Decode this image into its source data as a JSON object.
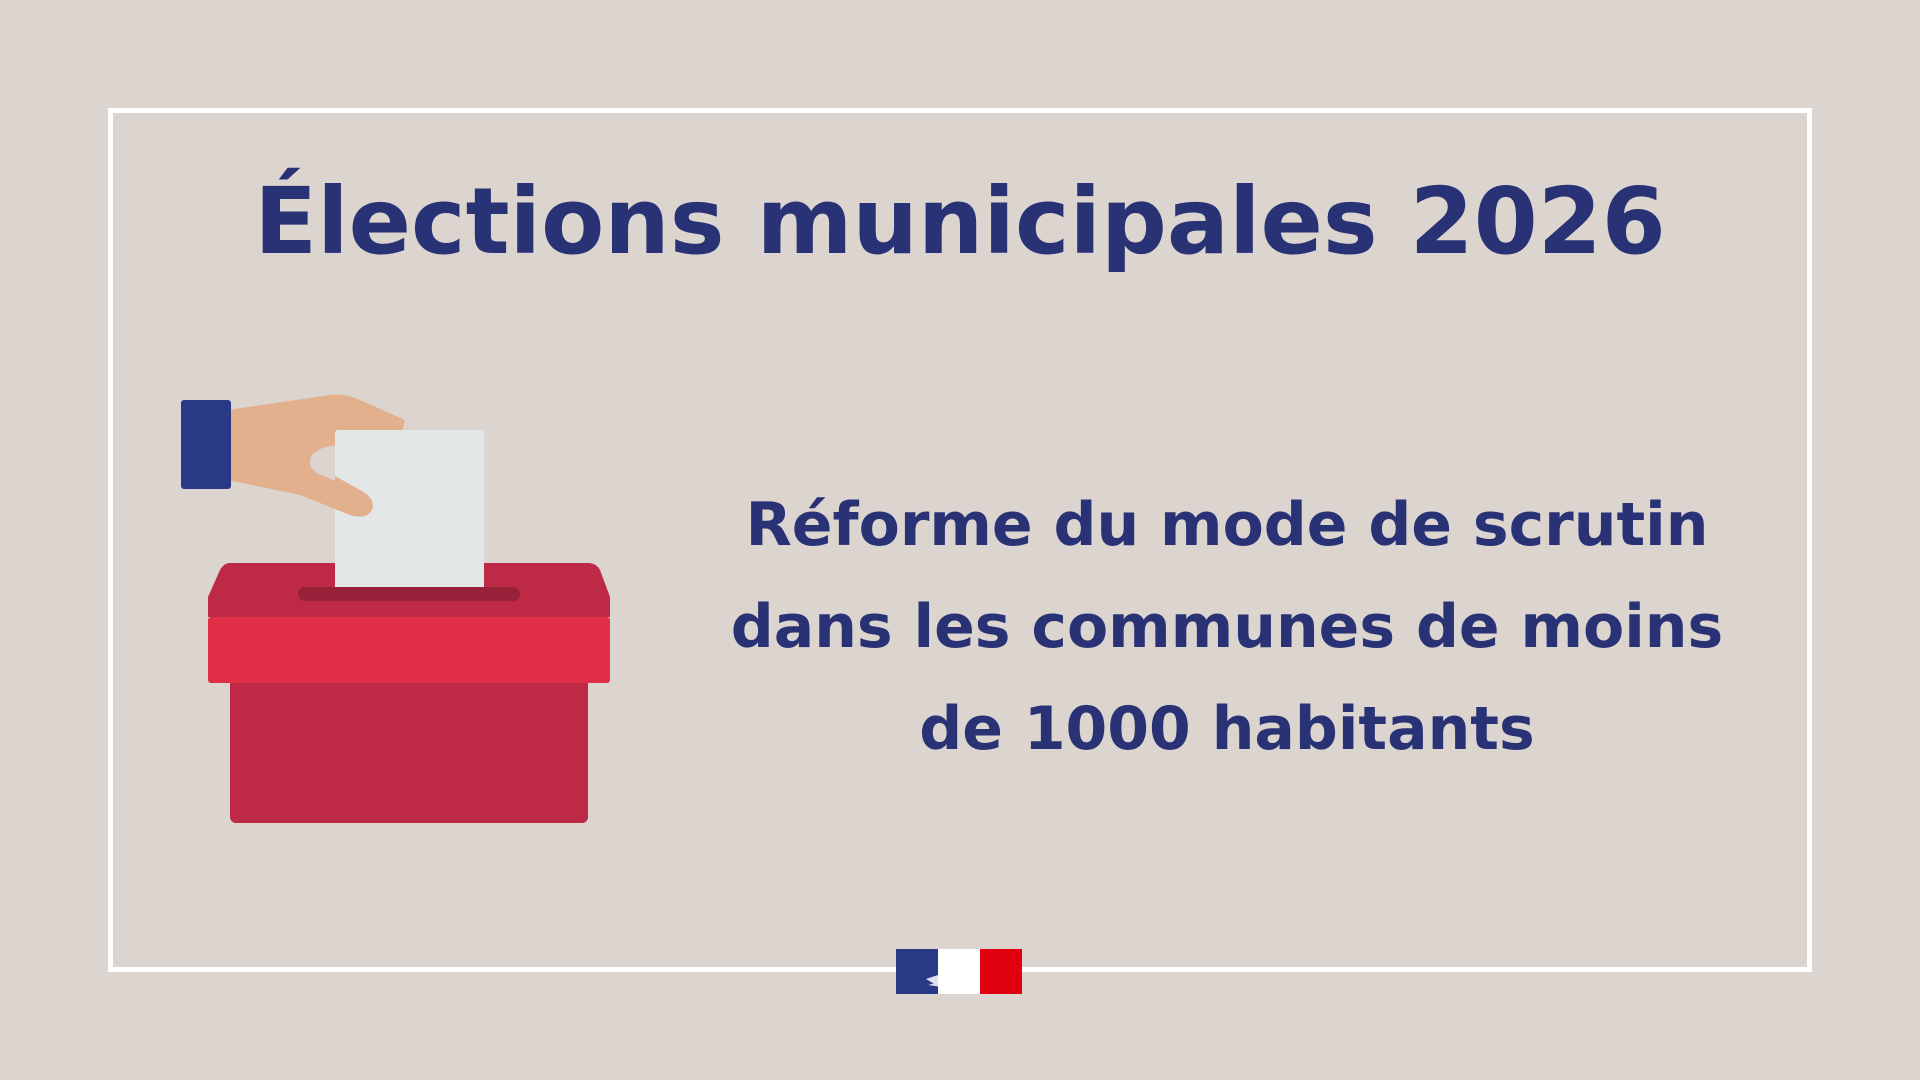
{
  "title": "Élections municipales 2026",
  "subtitle_lines": [
    "Réforme du mode de scrutin",
    "dans les communes de moins",
    "de 1000 habitants"
  ],
  "colors": {
    "background": "#dcd4ce",
    "text": "#283275",
    "frame": "#ffffff",
    "box_dark": "#be2a45",
    "box_light": "#e02f47",
    "ballot": "#e3e7e8",
    "skin": "#e3b08e",
    "sleeve": "#283a86"
  },
  "illustration": "ballot-box-icon",
  "logo": "marianne-republique-francaise-logo"
}
